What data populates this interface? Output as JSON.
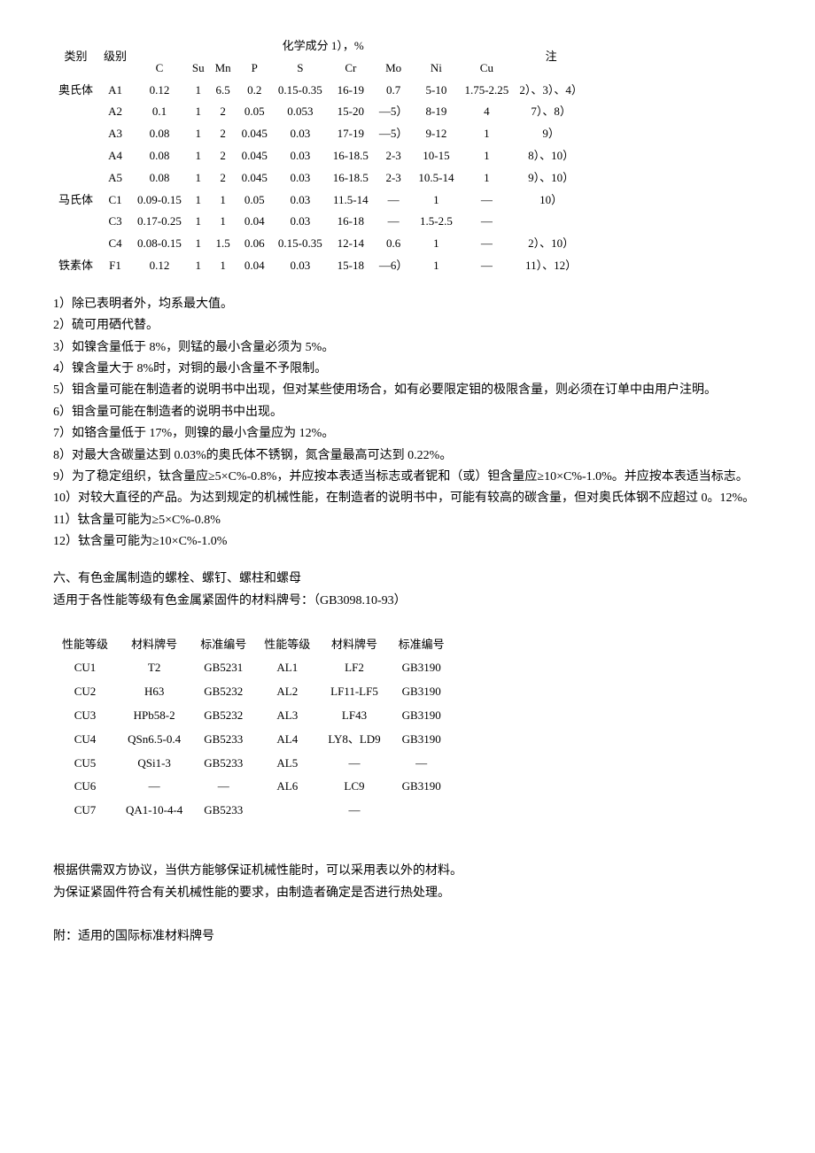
{
  "table1": {
    "header": {
      "col_category": "类别",
      "col_grade": "级别",
      "col_chem_title": "化学成分 1），%",
      "col_note": "注",
      "sub": {
        "C": "C",
        "Su": "Su",
        "Mn": "Mn",
        "P": "P",
        "S": "S",
        "Cr": "Cr",
        "Mo": "Mo",
        "Ni": "Ni",
        "Cu": "Cu"
      }
    },
    "rows": [
      {
        "cat": "奥氏体",
        "grade": "A1",
        "C": "0.12",
        "Su": "1",
        "Mn": "6.5",
        "P": "0.2",
        "S": "0.15-0.35",
        "Cr": "16-19",
        "Mo": "0.7",
        "Ni": "5-10",
        "Cu": "1.75-2.25",
        "note": "2）、3）、4）"
      },
      {
        "cat": "",
        "grade": "A2",
        "C": "0.1",
        "Su": "1",
        "Mn": "2",
        "P": "0.05",
        "S": "0.053",
        "Cr": "15-20",
        "Mo": "—5）",
        "Ni": "8-19",
        "Cu": "4",
        "note": "7）、8）"
      },
      {
        "cat": "",
        "grade": "A3",
        "C": "0.08",
        "Su": "1",
        "Mn": "2",
        "P": "0.045",
        "S": "0.03",
        "Cr": "17-19",
        "Mo": "—5）",
        "Ni": "9-12",
        "Cu": "1",
        "note": "9）"
      },
      {
        "cat": "",
        "grade": "A4",
        "C": "0.08",
        "Su": "1",
        "Mn": "2",
        "P": "0.045",
        "S": "0.03",
        "Cr": "16-18.5",
        "Mo": "2-3",
        "Ni": "10-15",
        "Cu": "1",
        "note": "8）、10）"
      },
      {
        "cat": "",
        "grade": "A5",
        "C": "0.08",
        "Su": "1",
        "Mn": "2",
        "P": "0.045",
        "S": "0.03",
        "Cr": "16-18.5",
        "Mo": "2-3",
        "Ni": "10.5-14",
        "Cu": "1",
        "note": "9）、10）"
      },
      {
        "cat": "马氏体",
        "grade": "C1",
        "C": "0.09-0.15",
        "Su": "1",
        "Mn": "1",
        "P": "0.05",
        "S": "0.03",
        "Cr": "11.5-14",
        "Mo": "—",
        "Ni": "1",
        "Cu": "—",
        "note": "10）"
      },
      {
        "cat": "",
        "grade": "C3",
        "C": "0.17-0.25",
        "Su": "1",
        "Mn": "1",
        "P": "0.04",
        "S": "0.03",
        "Cr": "16-18",
        "Mo": "—",
        "Ni": "1.5-2.5",
        "Cu": "—",
        "note": ""
      },
      {
        "cat": "",
        "grade": "C4",
        "C": "0.08-0.15",
        "Su": "1",
        "Mn": "1.5",
        "P": "0.06",
        "S": "0.15-0.35",
        "Cr": "12-14",
        "Mo": "0.6",
        "Ni": "1",
        "Cu": "—",
        "note": "2）、10）"
      },
      {
        "cat": "铁素体",
        "grade": "F1",
        "C": "0.12",
        "Su": "1",
        "Mn": "1",
        "P": "0.04",
        "S": "0.03",
        "Cr": "15-18",
        "Mo": "—6）",
        "Ni": "1",
        "Cu": "—",
        "note": "11）、12）"
      }
    ]
  },
  "notes": [
    "1）除已表明者外，均系最大值。",
    "2）硫可用硒代替。",
    "3）如镍含量低于 8%，则锰的最小含量必须为 5%。",
    "4）镍含量大于 8%时，对铜的最小含量不予限制。",
    "5）钼含量可能在制造者的说明书中出现，但对某些使用场合，如有必要限定钼的极限含量，则必须在订单中由用户注明。",
    "6）钼含量可能在制造者的说明书中出现。",
    "7）如铬含量低于 17%，则镍的最小含量应为 12%。",
    "8）对最大含碳量达到 0.03%的奥氏体不锈钢，氮含量最高可达到 0.22%。",
    "9）为了稳定组织，钛含量应≥5×C%-0.8%，并应按本表适当标志或者铌和（或）钽含量应≥10×C%-1.0%。并应按本表适当标志。",
    "10）对较大直径的产品。为达到规定的机械性能，在制造者的说明书中，可能有较高的碳含量，但对奥氏体钢不应超过 0。12%。",
    "11）钛含量可能为≥5×C%-0.8%",
    "12）钛含量可能为≥10×C%-1.0%"
  ],
  "section6": {
    "title": "六、有色金属制造的螺栓、螺钉、螺柱和螺母",
    "subtitle": "适用于各性能等级有色金属紧固件的材料牌号：（GB3098.10-93）"
  },
  "table2": {
    "headers": {
      "perf": "性能等级",
      "mat": "材料牌号",
      "std": "标准编号"
    },
    "rows": [
      {
        "p1": "CU1",
        "m1": "T2",
        "s1": "GB5231",
        "p2": "AL1",
        "m2": "LF2",
        "s2": "GB3190"
      },
      {
        "p1": "CU2",
        "m1": "H63",
        "s1": "GB5232",
        "p2": "AL2",
        "m2": "LF11-LF5",
        "s2": "GB3190"
      },
      {
        "p1": "CU3",
        "m1": "HPb58-2",
        "s1": "GB5232",
        "p2": "AL3",
        "m2": "LF43",
        "s2": "GB3190"
      },
      {
        "p1": "CU4",
        "m1": "QSn6.5-0.4",
        "s1": "GB5233",
        "p2": "AL4",
        "m2": "LY8、LD9",
        "s2": "GB3190"
      },
      {
        "p1": "CU5",
        "m1": "QSi1-3",
        "s1": "GB5233",
        "p2": "AL5",
        "m2": "—",
        "s2": "—"
      },
      {
        "p1": "CU6",
        "m1": "—",
        "s1": "—",
        "p2": "AL6",
        "m2": "LC9",
        "s2": "GB3190"
      },
      {
        "p1": "CU7",
        "m1": "QA1-10-4-4",
        "s1": "GB5233",
        "p2": "",
        "m2": "—",
        "s2": ""
      }
    ]
  },
  "footer": {
    "p1": "根据供需双方协议，当供方能够保证机械性能时，可以采用表以外的材料。",
    "p2": "为保证紧固件符合有关机械性能的要求，由制造者确定是否进行热处理。",
    "p3": "附：适用的国际标准材料牌号"
  }
}
